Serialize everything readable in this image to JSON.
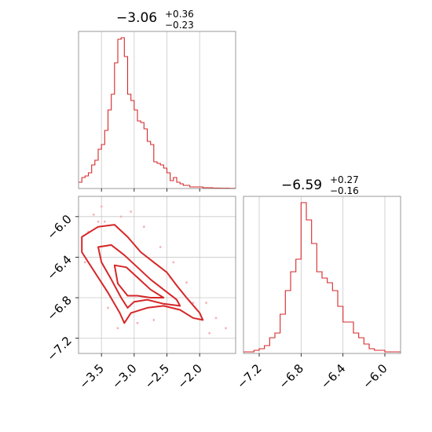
{
  "chart_data": [
    {
      "type": "histogram",
      "panel": "top-left",
      "title": {
        "value": "−3.06",
        "sup": "+0.36",
        "sub": "−0.23"
      },
      "xlim": [
        -3.85,
        -1.45
      ],
      "x_ticks": [
        -3.5,
        -3.0,
        -2.5,
        -2.0
      ],
      "ylim": [
        0,
        1.0
      ],
      "bin_edges": [
        -3.85,
        -3.8,
        -3.75,
        -3.7,
        -3.65,
        -3.6,
        -3.55,
        -3.5,
        -3.45,
        -3.4,
        -3.35,
        -3.3,
        -3.25,
        -3.2,
        -3.15,
        -3.1,
        -3.05,
        -3.0,
        -2.95,
        -2.9,
        -2.85,
        -2.8,
        -2.75,
        -2.7,
        -2.65,
        -2.6,
        -2.55,
        -2.5,
        -2.45,
        -2.4,
        -2.35,
        -2.3,
        -2.25,
        -2.2,
        -2.15,
        -2.1,
        -2.05,
        -2.0,
        -1.95,
        -1.9,
        -1.85,
        -1.8,
        -1.75,
        -1.7,
        -1.65,
        -1.6,
        -1.55,
        -1.5,
        -1.45
      ],
      "counts": [
        0.04,
        0.07,
        0.08,
        0.1,
        0.15,
        0.18,
        0.25,
        0.28,
        0.37,
        0.5,
        0.6,
        0.8,
        0.95,
        0.96,
        0.84,
        0.6,
        0.56,
        0.5,
        0.43,
        0.42,
        0.38,
        0.3,
        0.28,
        0.17,
        0.16,
        0.15,
        0.13,
        0.1,
        0.05,
        0.07,
        0.04,
        0.03,
        0.02,
        0.02,
        0.01,
        0.01,
        0.01,
        0.01,
        0.005,
        0.005,
        0.005,
        0.003,
        0.003,
        0.002,
        0.002,
        0.002,
        0.001,
        0.001
      ]
    },
    {
      "type": "contour",
      "panel": "bottom-left",
      "xlim": [
        -3.85,
        -1.45
      ],
      "ylim": [
        -7.35,
        -5.8
      ],
      "x_ticks": [
        -3.5,
        -3.0,
        -2.5,
        -2.0
      ],
      "y_ticks": [
        -6.0,
        -6.4,
        -6.8,
        -7.2
      ],
      "contours": [
        {
          "level": "outer",
          "points": [
            [
              -3.8,
              -6.2
            ],
            [
              -3.55,
              -6.1
            ],
            [
              -3.3,
              -6.08
            ],
            [
              -3.1,
              -6.2
            ],
            [
              -2.9,
              -6.35
            ],
            [
              -2.7,
              -6.45
            ],
            [
              -2.5,
              -6.55
            ],
            [
              -2.35,
              -6.68
            ],
            [
              -2.2,
              -6.8
            ],
            [
              -2.0,
              -6.95
            ],
            [
              -1.95,
              -7.02
            ],
            [
              -2.1,
              -7.0
            ],
            [
              -2.3,
              -6.92
            ],
            [
              -2.55,
              -6.88
            ],
            [
              -2.8,
              -6.9
            ],
            [
              -3.05,
              -6.95
            ],
            [
              -3.15,
              -7.05
            ],
            [
              -3.22,
              -6.95
            ],
            [
              -3.4,
              -6.75
            ],
            [
              -3.6,
              -6.55
            ],
            [
              -3.8,
              -6.35
            ]
          ]
        },
        {
          "level": "mid",
          "points": [
            [
              -3.55,
              -6.3
            ],
            [
              -3.35,
              -6.28
            ],
            [
              -3.15,
              -6.38
            ],
            [
              -2.95,
              -6.5
            ],
            [
              -2.75,
              -6.62
            ],
            [
              -2.55,
              -6.72
            ],
            [
              -2.35,
              -6.82
            ],
            [
              -2.3,
              -6.88
            ],
            [
              -2.55,
              -6.86
            ],
            [
              -2.8,
              -6.82
            ],
            [
              -3.0,
              -6.84
            ],
            [
              -3.1,
              -6.9
            ],
            [
              -3.2,
              -6.8
            ],
            [
              -3.35,
              -6.62
            ],
            [
              -3.5,
              -6.45
            ]
          ]
        },
        {
          "level": "inner",
          "points": [
            [
              -3.3,
              -6.48
            ],
            [
              -3.12,
              -6.5
            ],
            [
              -2.95,
              -6.6
            ],
            [
              -2.75,
              -6.72
            ],
            [
              -2.55,
              -6.8
            ],
            [
              -2.75,
              -6.8
            ],
            [
              -2.95,
              -6.78
            ],
            [
              -3.1,
              -6.78
            ],
            [
              -3.25,
              -6.66
            ]
          ]
        }
      ],
      "scatter_points": [
        [
          -3.62,
          -5.98
        ],
        [
          -3.55,
          -6.05
        ],
        [
          -3.2,
          -6.0
        ],
        [
          -3.05,
          -5.95
        ],
        [
          -2.85,
          -6.1
        ],
        [
          -2.6,
          -6.3
        ],
        [
          -2.4,
          -6.45
        ],
        [
          -2.2,
          -6.65
        ],
        [
          -1.9,
          -6.85
        ],
        [
          -1.75,
          -7.0
        ],
        [
          -1.6,
          -7.1
        ],
        [
          -3.75,
          -6.45
        ],
        [
          -3.4,
          -6.9
        ],
        [
          -3.25,
          -7.1
        ],
        [
          -2.95,
          -7.05
        ],
        [
          -2.7,
          -7.02
        ],
        [
          -3.5,
          -5.9
        ],
        [
          -2.45,
          -6.6
        ],
        [
          -2.1,
          -6.85
        ],
        [
          -1.85,
          -7.15
        ],
        [
          -3.7,
          -6.15
        ],
        [
          -3.45,
          -6.05
        ]
      ]
    },
    {
      "type": "histogram",
      "panel": "bottom-right",
      "title": {
        "value": "−6.59",
        "sup": "+0.27",
        "sub": "−0.16"
      },
      "xlim": [
        -7.35,
        -5.85
      ],
      "x_ticks": [
        -7.2,
        -6.8,
        -6.4,
        -6.0
      ],
      "ylim": [
        0,
        1.0
      ],
      "bin_edges": [
        -7.35,
        -7.3,
        -7.25,
        -7.2,
        -7.15,
        -7.1,
        -7.05,
        -7.0,
        -6.95,
        -6.9,
        -6.85,
        -6.8,
        -6.75,
        -6.7,
        -6.65,
        -6.6,
        -6.55,
        -6.5,
        -6.45,
        -6.4,
        -6.35,
        -6.3,
        -6.25,
        -6.2,
        -6.15,
        -6.1,
        -6.05,
        -6.0,
        -5.95,
        -5.9,
        -5.85
      ],
      "counts": [
        0.01,
        0.01,
        0.02,
        0.03,
        0.05,
        0.1,
        0.13,
        0.25,
        0.4,
        0.52,
        0.6,
        0.96,
        0.85,
        0.7,
        0.52,
        0.48,
        0.45,
        0.4,
        0.3,
        0.2,
        0.2,
        0.13,
        0.1,
        0.06,
        0.03,
        0.02,
        0.02,
        0.01,
        0.01,
        0.01
      ]
    }
  ]
}
